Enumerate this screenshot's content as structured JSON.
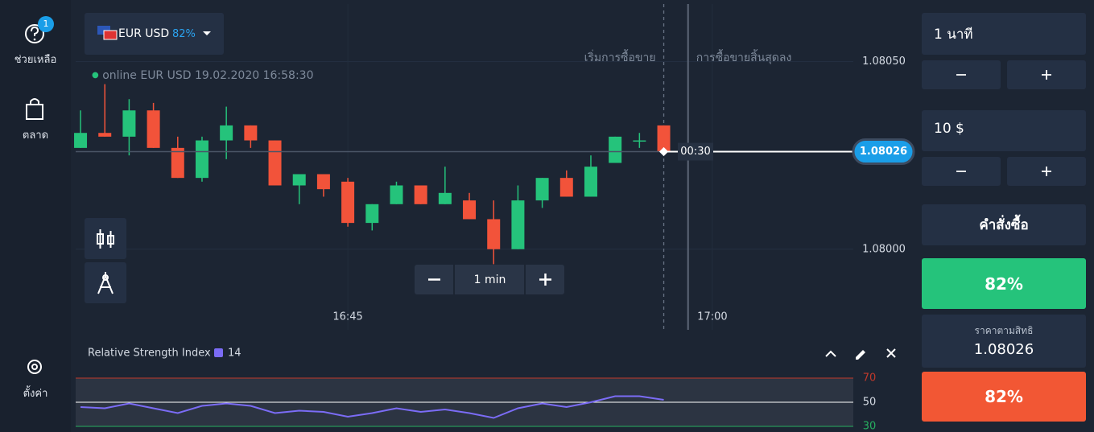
{
  "sidebar": {
    "help": "ช่วยเหลือ",
    "badge": "1",
    "market": "ตลาด",
    "settings": "ตั้งค่า"
  },
  "asset": {
    "name": "EUR USD",
    "payout": "82%"
  },
  "status": {
    "state": "online EUR USD",
    "time": "19.02.2020 16:58:30"
  },
  "timeframe": "1 min",
  "panel": {
    "duration": "1 นาที",
    "amount": "10 $",
    "order": "คำสั่งซื้อ",
    "up": "82%",
    "strike_label": "ราคาตามสิทธิ",
    "strike": "1.08026",
    "down": "82%"
  },
  "chart_data": [
    {
      "type": "candlestick",
      "x": [
        34,
        35,
        36,
        37,
        38,
        39,
        40,
        41,
        42,
        43,
        44,
        45,
        46,
        47,
        48,
        49,
        50,
        51,
        52,
        53,
        54,
        55,
        56,
        57,
        58
      ],
      "open": [
        1.08027,
        1.08031,
        1.0803,
        1.08037,
        1.08027,
        1.08019,
        1.08029,
        1.08033,
        1.08029,
        1.08017,
        1.0802,
        1.08018,
        1.08007,
        1.08012,
        1.08017,
        1.08012,
        1.08013,
        1.08008,
        1.08,
        1.08013,
        1.08019,
        1.08014,
        1.08023,
        1.08029,
        1.08033
      ],
      "high": [
        1.08037,
        1.08044,
        1.0804,
        1.08039,
        1.0803,
        1.0803,
        1.08038,
        1.08033,
        1.08029,
        1.0802,
        1.0802,
        1.08019,
        1.08012,
        1.08018,
        1.08017,
        1.08022,
        1.08015,
        1.08013,
        1.08017,
        1.08019,
        1.08021,
        1.08025,
        1.0803,
        1.08031,
        1.08033
      ],
      "low": [
        1.08027,
        1.0803,
        1.08025,
        1.08027,
        1.08019,
        1.08018,
        1.08024,
        1.08027,
        1.08017,
        1.08012,
        1.08014,
        1.08006,
        1.08005,
        1.08012,
        1.08012,
        1.08012,
        1.08008,
        1.07996,
        1.08,
        1.08011,
        1.08014,
        1.08014,
        1.08023,
        1.08027,
        1.08026
      ],
      "close": [
        1.08031,
        1.0803,
        1.08037,
        1.08027,
        1.08019,
        1.08029,
        1.08033,
        1.08029,
        1.08017,
        1.0802,
        1.08016,
        1.08007,
        1.08012,
        1.08017,
        1.08012,
        1.08015,
        1.08008,
        1.08,
        1.08013,
        1.08019,
        1.08014,
        1.08022,
        1.0803,
        1.08029,
        1.08026
      ],
      "up_color": "#25c37b",
      "down_color": "#f2533a",
      "xlim": [
        33.8,
        65.8
      ],
      "xticks": [
        {
          "value": 45,
          "label": "16:45"
        },
        {
          "value": 60,
          "label": "17:00"
        }
      ],
      "ylim": [
        1.0798,
        1.0806
      ],
      "yticks": [
        {
          "value": 1.0805,
          "label": "1.08050"
        },
        {
          "value": 1.08,
          "label": "1.08000"
        }
      ],
      "current_price": 1.08026,
      "timer": "00:30",
      "markers": [
        {
          "x": 58,
          "label": "เริ่มการซื้อขาย"
        },
        {
          "x": 59,
          "label": "การซื้อขายสิ้นสุดลง"
        }
      ]
    },
    {
      "type": "line",
      "name": "Relative Strength Index",
      "period": 14,
      "color": "#7b6cf6",
      "x": [
        34,
        35,
        36,
        37,
        38,
        39,
        40,
        41,
        42,
        43,
        44,
        45,
        46,
        47,
        48,
        49,
        50,
        51,
        52,
        53,
        54,
        55,
        56,
        57,
        58
      ],
      "values": [
        46,
        45,
        49,
        45,
        41,
        47,
        49,
        47,
        41,
        43,
        42,
        38,
        41,
        45,
        42,
        44,
        41,
        37,
        45,
        49,
        46,
        50,
        55,
        55,
        52
      ],
      "ylim": [
        30,
        70
      ],
      "yticks": [
        70,
        50,
        30
      ]
    }
  ]
}
